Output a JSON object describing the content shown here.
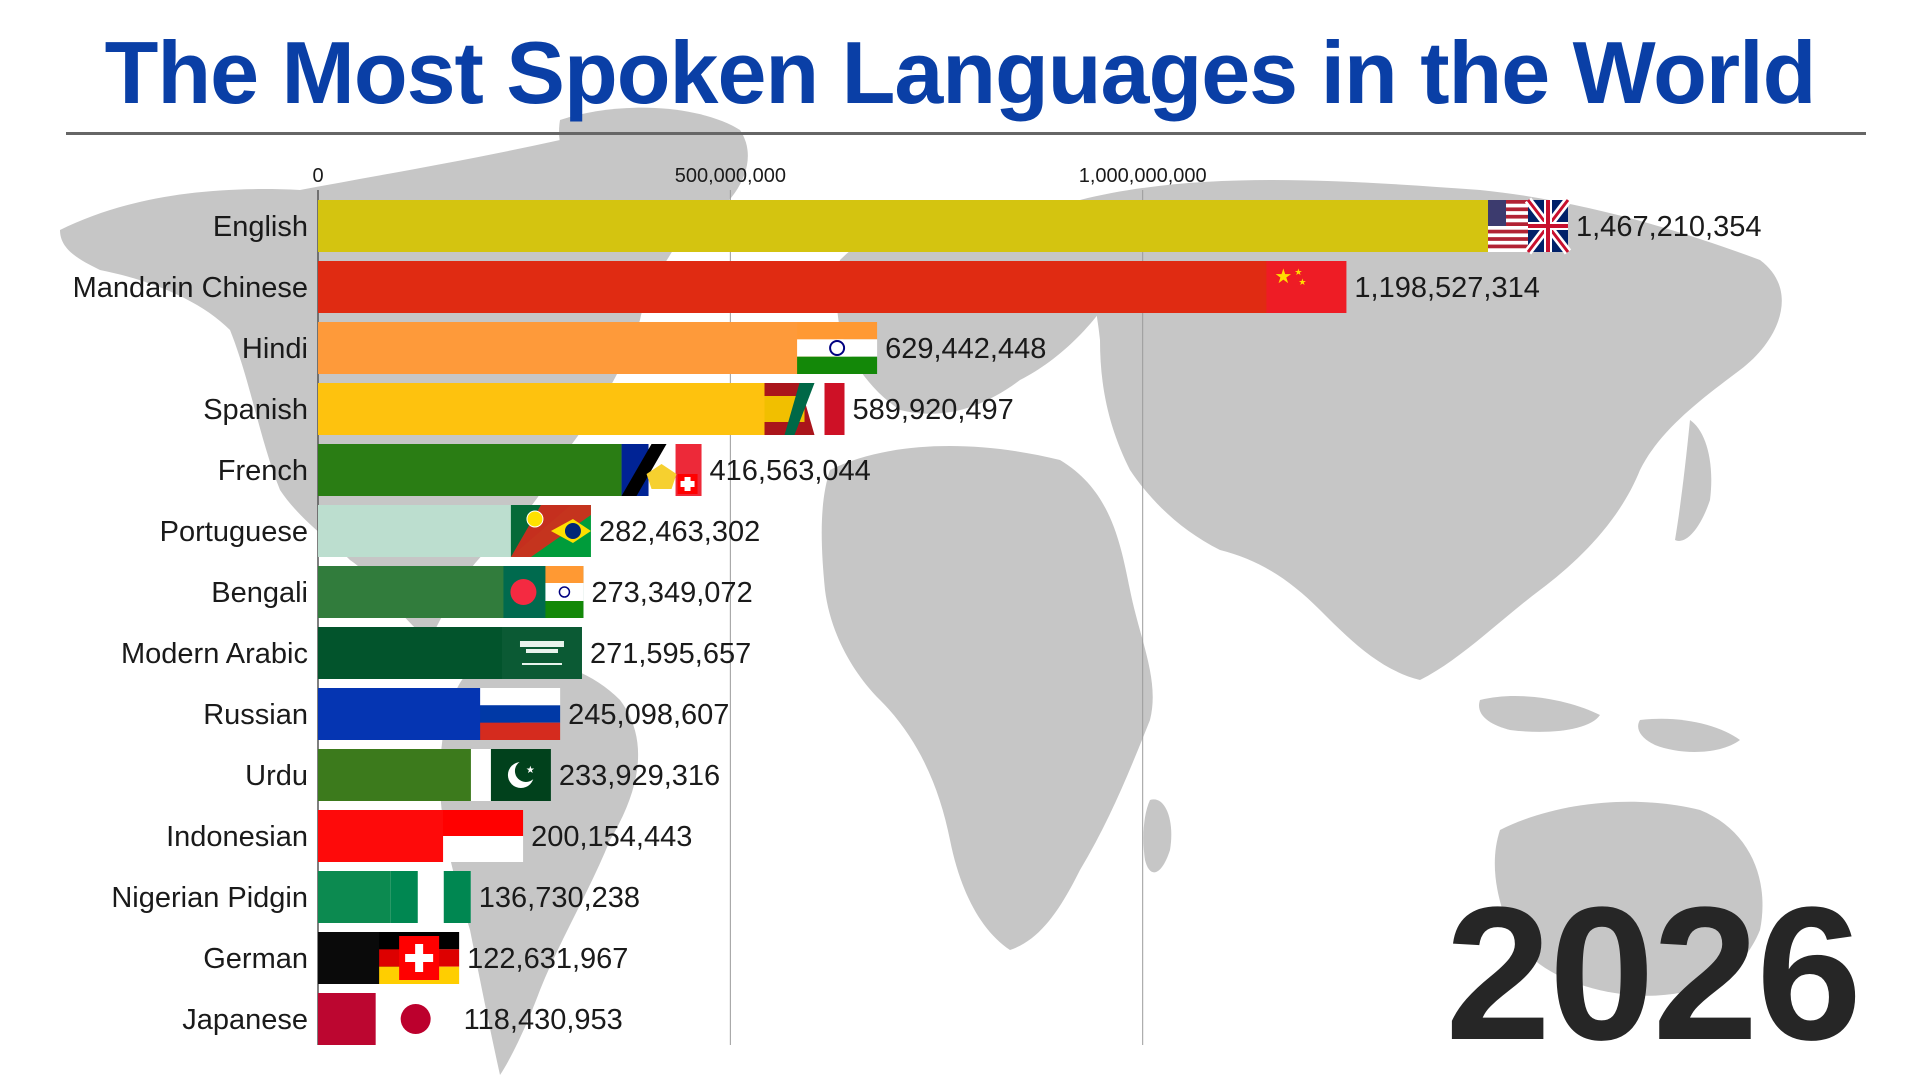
{
  "title": "The Most Spoken Languages in the World",
  "year": "2026",
  "chart_data": {
    "type": "bar",
    "orientation": "horizontal",
    "title": "The Most Spoken Languages in the World",
    "xlim": [
      0,
      1550000000
    ],
    "xticks": [
      0,
      500000000,
      1000000000
    ],
    "xtick_labels": [
      "0",
      "500,000,000",
      "1,000,000,000"
    ],
    "grid": true,
    "categories": [
      "English",
      "Mandarin Chinese",
      "Hindi",
      "Spanish",
      "French",
      "Portuguese",
      "Bengali",
      "Modern Arabic",
      "Russian",
      "Urdu",
      "Indonesian",
      "Nigerian Pidgin",
      "German",
      "Japanese"
    ],
    "values": [
      1467210354,
      1198527314,
      629442448,
      589920497,
      416563044,
      282463302,
      273349072,
      271595657,
      245098607,
      233929316,
      200154443,
      136730238,
      122631967,
      118430953
    ],
    "value_labels": [
      "1,467,210,354",
      "1,198,527,314",
      "629,442,448",
      "589,920,497",
      "416,563,044",
      "282,463,302",
      "273,349,072",
      "271,595,657",
      "245,098,607",
      "233,929,316",
      "200,154,443",
      "136,730,238",
      "122,631,967",
      "118,430,953"
    ],
    "colors": [
      "#d4c410",
      "#e02b12",
      "#fe9a3a",
      "#fec20e",
      "#2a7d14",
      "#bcdecf",
      "#317c3c",
      "#02542c",
      "#0535b2",
      "#3c7a1c",
      "#fe0a0a",
      "#0c8a50",
      "#0a0a0a",
      "#bc0630"
    ],
    "flags": [
      "us-uk-flag",
      "china-flag",
      "india-flag",
      "spain-mexico-flag",
      "france-canada-flag",
      "portugal-brazil-flag",
      "bangladesh-india-flag",
      "saudi-arabia-flag",
      "russia-flag",
      "pakistan-flag",
      "indonesia-flag",
      "nigeria-flag",
      "germany-switzerland-flag",
      "japan-flag"
    ]
  }
}
